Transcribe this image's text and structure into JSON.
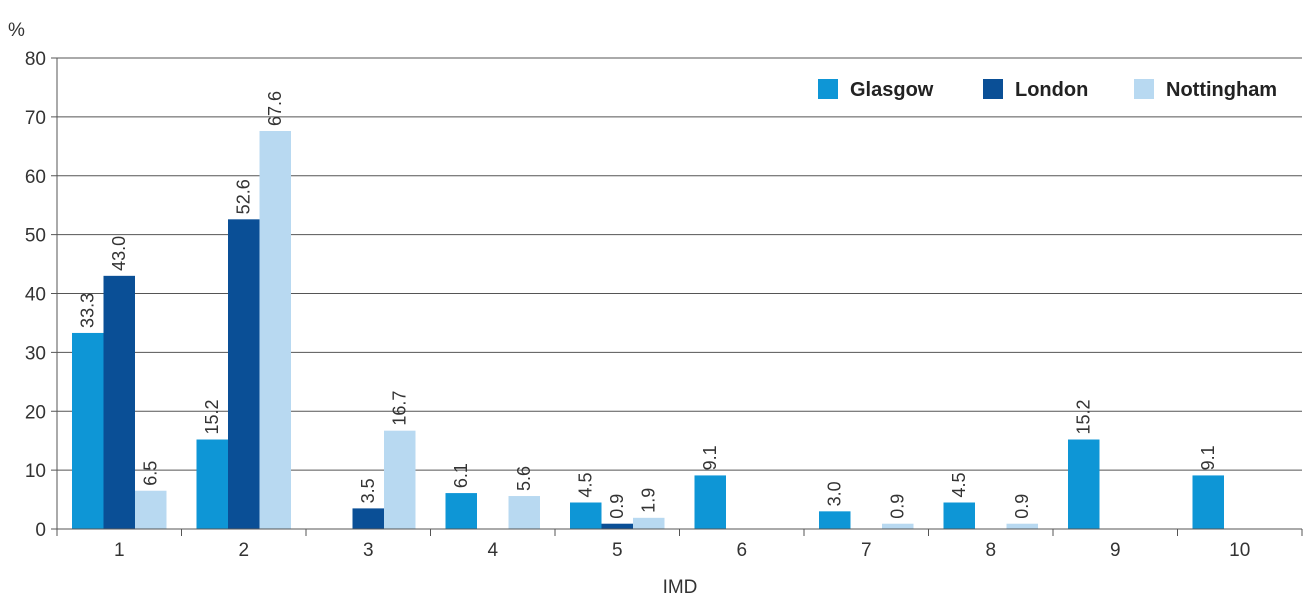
{
  "chart_data": {
    "type": "bar",
    "title": "",
    "xlabel": "IMD",
    "ylabel": "%",
    "ylim": [
      0,
      80
    ],
    "yticks": [
      0,
      10,
      20,
      30,
      40,
      50,
      60,
      70,
      80
    ],
    "grid": true,
    "legend_position": "top-right",
    "categories": [
      "1",
      "2",
      "3",
      "4",
      "5",
      "6",
      "7",
      "8",
      "9",
      "10"
    ],
    "series": [
      {
        "name": "Glasgow",
        "color": "#0e96d6",
        "values": [
          33.3,
          15.2,
          null,
          6.1,
          4.5,
          9.1,
          3.0,
          4.5,
          15.2,
          9.1
        ],
        "labels": [
          "33.3",
          "15.2",
          "",
          "6.1",
          "4.5",
          "9.1",
          "3.0",
          "4.5",
          "15.2",
          "9.1"
        ]
      },
      {
        "name": "London",
        "color": "#0a4f96",
        "values": [
          43.0,
          52.6,
          3.5,
          null,
          0.9,
          null,
          null,
          null,
          null,
          null
        ],
        "labels": [
          "43.0",
          "52.6",
          "3.5",
          "",
          "0.9",
          "",
          "",
          "",
          "",
          ""
        ]
      },
      {
        "name": "Nottingham",
        "color": "#b8d9f1",
        "values": [
          6.5,
          67.6,
          16.7,
          5.6,
          1.9,
          null,
          0.9,
          0.9,
          null,
          null
        ],
        "labels": [
          "6.5",
          "67.6",
          "16.7",
          "5.6",
          "1.9",
          "",
          "0.9",
          "0.9",
          "",
          ""
        ]
      }
    ]
  }
}
